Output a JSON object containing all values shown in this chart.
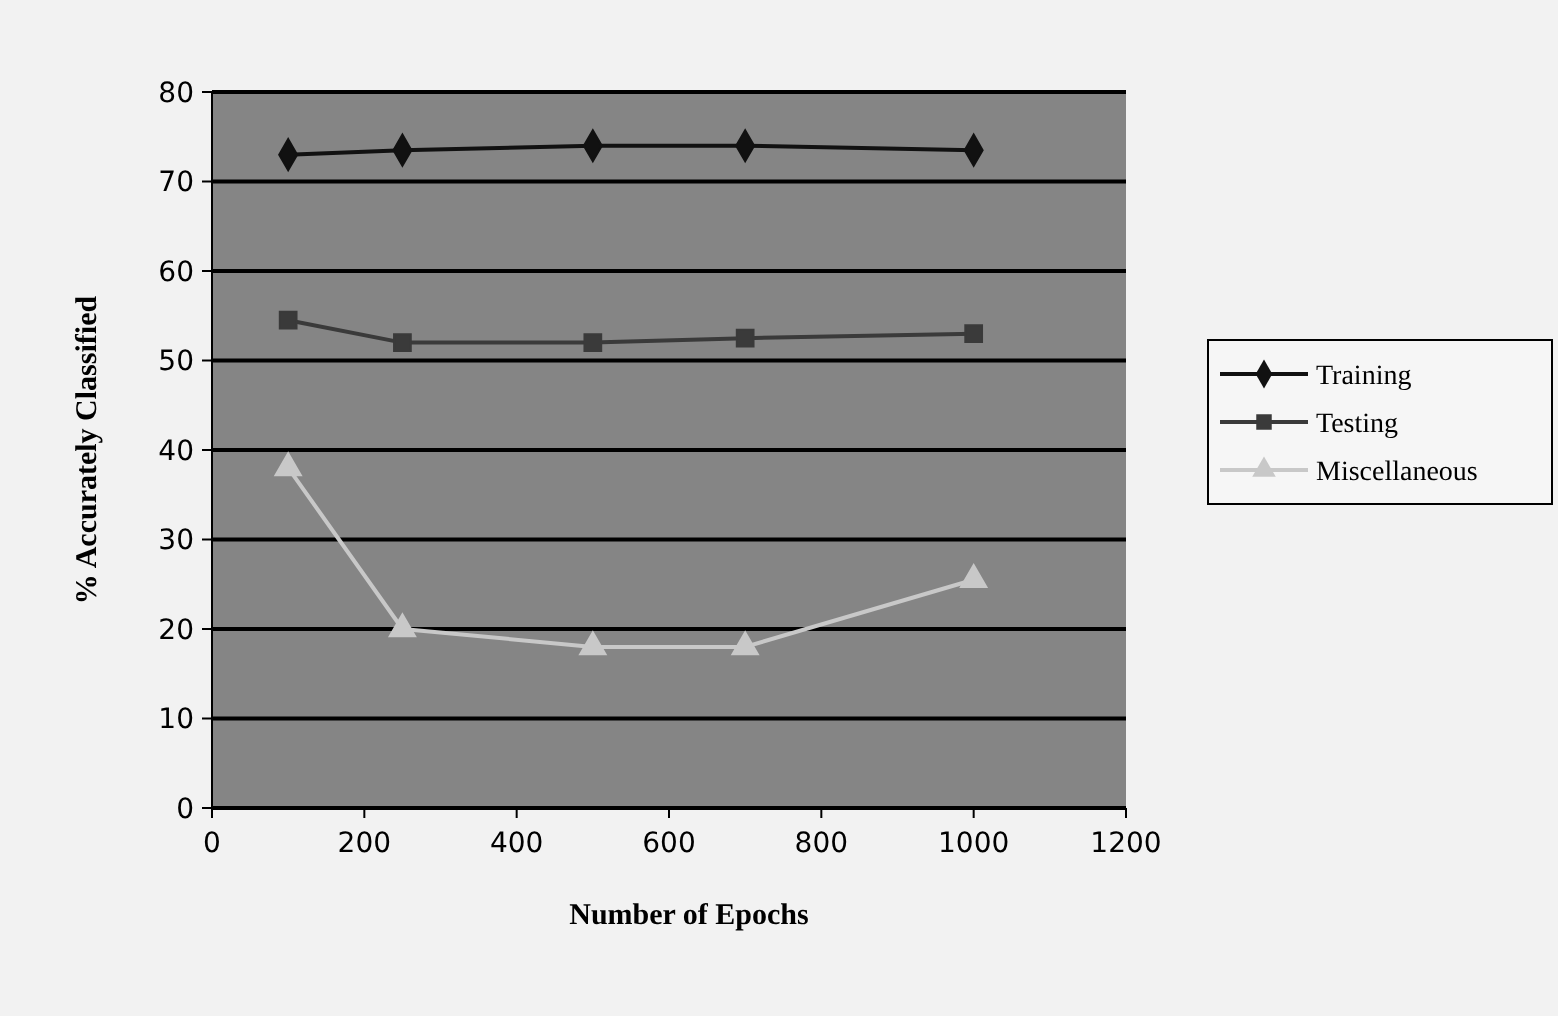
{
  "chart_data": {
    "type": "line",
    "xlabel": "Number of Epochs",
    "ylabel": "% Accurately Classified",
    "x": [
      100,
      250,
      500,
      700,
      1000
    ],
    "series": [
      {
        "name": "Training",
        "color": "#111111",
        "marker": "diamond",
        "values": [
          73,
          73.5,
          74,
          74,
          73.5
        ]
      },
      {
        "name": "Testing",
        "color": "#3a3a3a",
        "marker": "square",
        "values": [
          54.5,
          52,
          52,
          52.5,
          53
        ]
      },
      {
        "name": "Miscellaneous",
        "color": "#c8c8c8",
        "marker": "triangle",
        "values": [
          38,
          20,
          18,
          18,
          25.5
        ]
      }
    ],
    "xlim": [
      0,
      1200
    ],
    "xticks": [
      0,
      200,
      400,
      600,
      800,
      1000,
      1200
    ],
    "ylim": [
      0,
      80
    ],
    "yticks": [
      0,
      10,
      20,
      30,
      40,
      50,
      60,
      70,
      80
    ],
    "grid": "y",
    "legend": "right"
  }
}
